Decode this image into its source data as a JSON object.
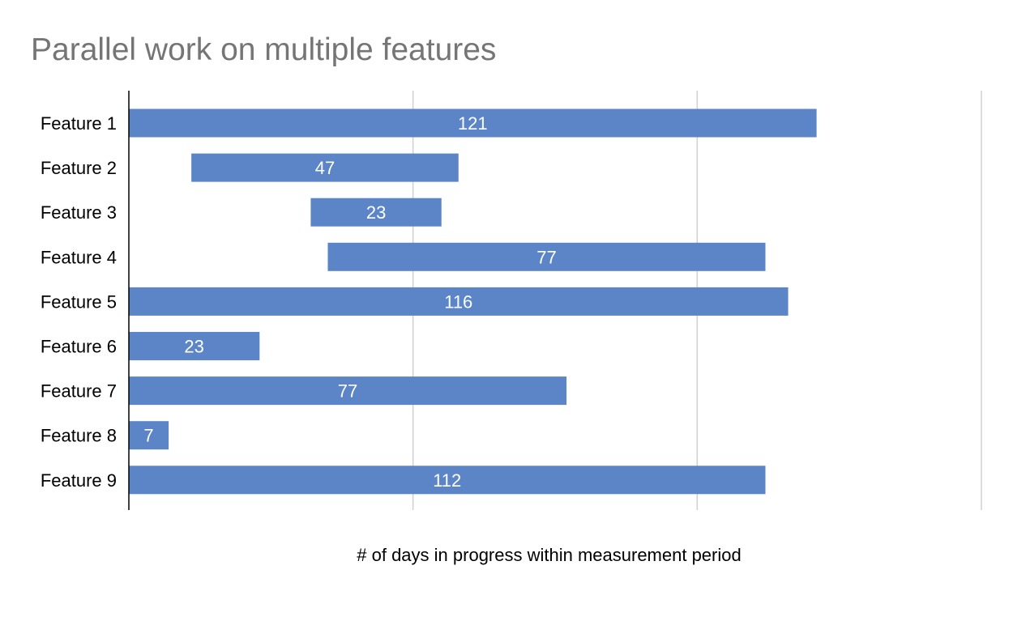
{
  "chart_data": {
    "type": "bar",
    "orientation": "horizontal",
    "stacked_offsets": true,
    "title": "Parallel work on multiple features",
    "xlabel": "# of days in progress within measurement period",
    "ylabel": "",
    "xlim": [
      0,
      150
    ],
    "grid": "vertical",
    "legend": "none",
    "categories": [
      "Feature 1",
      "Feature 2",
      "Feature 3",
      "Feature 4",
      "Feature 5",
      "Feature 6",
      "Feature 7",
      "Feature 8",
      "Feature 9"
    ],
    "start": [
      0,
      11,
      32,
      35,
      0,
      0,
      0,
      0,
      0
    ],
    "values": [
      121,
      47,
      23,
      77,
      116,
      23,
      77,
      7,
      112
    ],
    "colors": {
      "bar": "#5b85c6",
      "bar_label": "#ffffff",
      "grid": "#d0d0d0",
      "axis": "#000000",
      "title": "#757575"
    }
  }
}
